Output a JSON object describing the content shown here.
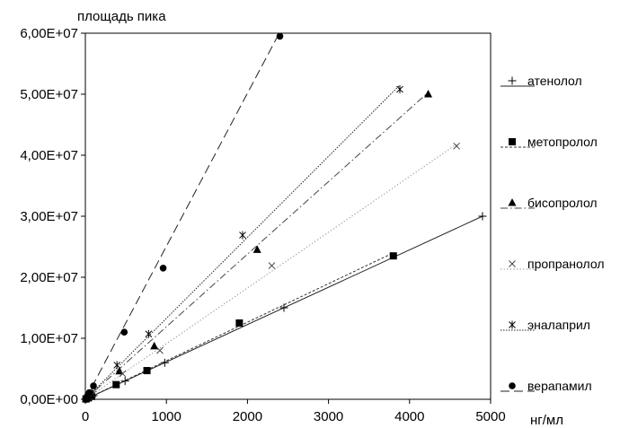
{
  "chart_data": {
    "type": "scatter",
    "title": "",
    "ylabel": "площадь пика",
    "xlabel": "нг/мл",
    "xlim": [
      0,
      5000
    ],
    "ylim": [
      0,
      60000000
    ],
    "x_ticks": [
      0,
      1000,
      2000,
      3000,
      4000,
      5000
    ],
    "x_tick_labels": [
      "0",
      "1000",
      "2000",
      "3000",
      "4000",
      "5000"
    ],
    "y_ticks": [
      0,
      10000000,
      20000000,
      30000000,
      40000000,
      50000000,
      60000000
    ],
    "y_tick_labels": [
      "0,00E+00",
      "1,00E+07",
      "2,00E+07",
      "3,00E+07",
      "4,00E+07",
      "5,00E+07",
      "6,00E+07"
    ],
    "grid": false,
    "legend_position": "right",
    "series": [
      {
        "name": "атенолол",
        "marker": "plus",
        "line_style": "solid",
        "points": [
          [
            10,
            60000
          ],
          [
            50,
            300000
          ],
          [
            100,
            600000
          ],
          [
            490,
            3000000
          ],
          [
            980,
            6000000
          ],
          [
            2450,
            15000000
          ],
          [
            4900,
            30000000
          ]
        ],
        "trend": [
          [
            0,
            0
          ],
          [
            4900,
            30000000
          ]
        ]
      },
      {
        "name": "метопролол",
        "marker": "square",
        "line_style": "dashed-fine",
        "points": [
          [
            8,
            50000
          ],
          [
            38,
            240000
          ],
          [
            76,
            470000
          ],
          [
            380,
            2400000
          ],
          [
            760,
            4700000
          ],
          [
            1900,
            12500000
          ],
          [
            3800,
            23500000
          ]
        ],
        "trend": [
          [
            0,
            0
          ],
          [
            3800,
            24000000
          ]
        ]
      },
      {
        "name": "бисопролол",
        "marker": "triangle",
        "line_style": "dash-dot",
        "points": [
          [
            8,
            90000
          ],
          [
            42,
            460000
          ],
          [
            85,
            870000
          ],
          [
            420,
            4600000
          ],
          [
            850,
            8700000
          ],
          [
            2120,
            24500000
          ],
          [
            4230,
            50000000
          ]
        ],
        "trend": [
          [
            0,
            0
          ],
          [
            4230,
            50300000
          ]
        ]
      },
      {
        "name": "пропранолол",
        "marker": "cross",
        "line_style": "dotted",
        "points": [
          [
            9,
            80000
          ],
          [
            46,
            420000
          ],
          [
            92,
            840000
          ],
          [
            460,
            4200000
          ],
          [
            920,
            8000000
          ],
          [
            2300,
            21900000
          ],
          [
            4580,
            41500000
          ]
        ],
        "trend": [
          [
            0,
            0
          ],
          [
            4580,
            41800000
          ]
        ]
      },
      {
        "name": "эналаприл",
        "marker": "asterisk",
        "line_style": "dotted-dense",
        "points": [
          [
            8,
            110000
          ],
          [
            39,
            560000
          ],
          [
            78,
            1070000
          ],
          [
            390,
            5600000
          ],
          [
            780,
            10700000
          ],
          [
            1940,
            26900000
          ],
          [
            3880,
            50800000
          ]
        ],
        "trend": [
          [
            0,
            0
          ],
          [
            3880,
            51500000
          ]
        ]
      },
      {
        "name": "верапамил",
        "marker": "circle",
        "line_style": "long-dash",
        "points": [
          [
            5,
            110000
          ],
          [
            24,
            550000
          ],
          [
            48,
            1090000
          ],
          [
            100,
            2200000
          ],
          [
            480,
            11000000
          ],
          [
            960,
            21500000
          ],
          [
            2400,
            59500000
          ]
        ],
        "trend": [
          [
            0,
            0
          ],
          [
            2400,
            60200000
          ]
        ]
      }
    ]
  }
}
